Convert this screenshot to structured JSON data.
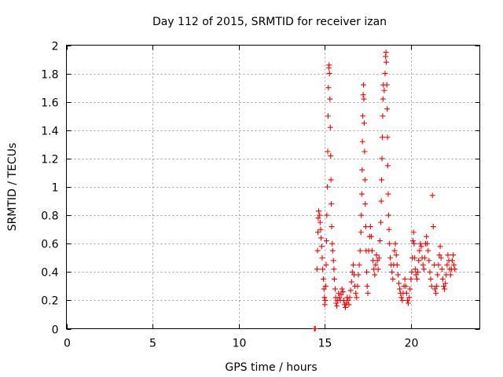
{
  "chart_data": {
    "type": "scatter",
    "title": "Day 112 of 2015, SRMTID for receiver izan",
    "xlabel": "GPS time / hours",
    "ylabel": "SRMTID / TECUs",
    "xlim": [
      0,
      24
    ],
    "ylim": [
      0,
      2
    ],
    "xticks": [
      0,
      5,
      10,
      15,
      20
    ],
    "yticks": [
      0,
      0.2,
      0.4,
      0.6,
      0.8,
      1,
      1.2,
      1.4,
      1.6,
      1.8,
      2
    ],
    "xtick_labels": [
      "0",
      "5",
      "10",
      "15",
      "20"
    ],
    "ytick_labels": [
      "0",
      "0.2",
      "0.4",
      "0.6",
      "0.8",
      "1",
      "1.2",
      "1.4",
      "1.6",
      "1.8",
      "2"
    ],
    "grid": true,
    "marker": "plus",
    "color": "#ff0000",
    "series": [
      {
        "name": "izan",
        "points": [
          [
            14.4,
            0.0
          ],
          [
            14.45,
            0.0
          ],
          [
            14.55,
            0.42
          ],
          [
            14.58,
            0.55
          ],
          [
            14.6,
            0.68
          ],
          [
            14.62,
            0.78
          ],
          [
            14.65,
            0.83
          ],
          [
            14.7,
            0.8
          ],
          [
            14.73,
            0.75
          ],
          [
            14.76,
            0.7
          ],
          [
            14.78,
            0.64
          ],
          [
            14.82,
            0.58
          ],
          [
            14.85,
            0.5
          ],
          [
            14.88,
            0.42
          ],
          [
            14.92,
            0.35
          ],
          [
            14.95,
            0.28
          ],
          [
            14.98,
            0.22
          ],
          [
            15.0,
            0.17
          ],
          [
            15.03,
            0.2
          ],
          [
            15.05,
            0.3
          ],
          [
            15.08,
            0.45
          ],
          [
            15.1,
            0.62
          ],
          [
            15.12,
            0.8
          ],
          [
            15.15,
            1.0
          ],
          [
            15.17,
            1.25
          ],
          [
            15.19,
            1.5
          ],
          [
            15.21,
            1.7
          ],
          [
            15.23,
            1.84
          ],
          [
            15.25,
            1.86
          ],
          [
            15.27,
            1.8
          ],
          [
            15.3,
            1.62
          ],
          [
            15.32,
            1.42
          ],
          [
            15.34,
            1.22
          ],
          [
            15.36,
            1.05
          ],
          [
            15.38,
            0.88
          ],
          [
            15.4,
            0.72
          ],
          [
            15.43,
            0.6
          ],
          [
            15.46,
            0.55
          ],
          [
            15.5,
            0.48
          ],
          [
            15.53,
            0.42
          ],
          [
            15.56,
            0.35
          ],
          [
            15.6,
            0.28
          ],
          [
            15.63,
            0.22
          ],
          [
            15.66,
            0.18
          ],
          [
            15.7,
            0.16
          ],
          [
            15.75,
            0.2
          ],
          [
            15.8,
            0.25
          ],
          [
            15.85,
            0.22
          ],
          [
            15.9,
            0.2
          ],
          [
            15.95,
            0.24
          ],
          [
            16.0,
            0.28
          ],
          [
            16.05,
            0.26
          ],
          [
            16.1,
            0.2
          ],
          [
            16.15,
            0.17
          ],
          [
            16.2,
            0.15
          ],
          [
            16.25,
            0.18
          ],
          [
            16.3,
            0.22
          ],
          [
            16.35,
            0.2
          ],
          [
            16.4,
            0.17
          ],
          [
            16.45,
            0.22
          ],
          [
            16.5,
            0.27
          ],
          [
            16.55,
            0.33
          ],
          [
            16.6,
            0.4
          ],
          [
            16.65,
            0.45
          ],
          [
            16.7,
            0.38
          ],
          [
            16.75,
            0.3
          ],
          [
            16.8,
            0.25
          ],
          [
            16.85,
            0.22
          ],
          [
            16.9,
            0.3
          ],
          [
            16.95,
            0.38
          ],
          [
            17.0,
            0.45
          ],
          [
            17.05,
            0.55
          ],
          [
            17.1,
            0.68
          ],
          [
            17.12,
            0.8
          ],
          [
            17.15,
            0.95
          ],
          [
            17.17,
            1.12
          ],
          [
            17.19,
            1.32
          ],
          [
            17.21,
            1.5
          ],
          [
            17.23,
            1.65
          ],
          [
            17.25,
            1.72
          ],
          [
            17.27,
            1.62
          ],
          [
            17.29,
            1.45
          ],
          [
            17.31,
            1.25
          ],
          [
            17.33,
            1.05
          ],
          [
            17.35,
            0.88
          ],
          [
            17.38,
            0.72
          ],
          [
            17.4,
            0.55
          ],
          [
            17.43,
            0.4
          ],
          [
            17.46,
            0.3
          ],
          [
            17.5,
            0.25
          ],
          [
            17.55,
            0.55
          ],
          [
            17.6,
            0.65
          ],
          [
            17.65,
            0.72
          ],
          [
            17.7,
            0.65
          ],
          [
            17.75,
            0.55
          ],
          [
            17.8,
            0.48
          ],
          [
            17.85,
            0.42
          ],
          [
            17.9,
            0.38
          ],
          [
            17.95,
            0.45
          ],
          [
            18.0,
            0.52
          ],
          [
            18.05,
            0.48
          ],
          [
            18.1,
            0.42
          ],
          [
            18.15,
            0.5
          ],
          [
            18.2,
            0.62
          ],
          [
            18.25,
            0.75
          ],
          [
            18.28,
            0.9
          ],
          [
            18.3,
            1.05
          ],
          [
            18.32,
            1.2
          ],
          [
            18.34,
            1.35
          ],
          [
            18.36,
            1.5
          ],
          [
            18.38,
            1.62
          ],
          [
            18.4,
            1.72
          ],
          [
            18.45,
            1.68
          ],
          [
            18.5,
            1.8
          ],
          [
            18.53,
            1.92
          ],
          [
            18.55,
            1.95
          ],
          [
            18.57,
            1.88
          ],
          [
            18.6,
            1.72
          ],
          [
            18.62,
            1.55
          ],
          [
            18.64,
            1.35
          ],
          [
            18.66,
            1.15
          ],
          [
            18.68,
            0.95
          ],
          [
            18.7,
            0.8
          ],
          [
            18.73,
            0.7
          ],
          [
            18.76,
            0.6
          ],
          [
            18.8,
            0.5
          ],
          [
            18.85,
            0.45
          ],
          [
            18.9,
            0.4
          ],
          [
            18.95,
            0.35
          ],
          [
            19.0,
            0.45
          ],
          [
            19.05,
            0.55
          ],
          [
            19.1,
            0.6
          ],
          [
            19.15,
            0.52
          ],
          [
            19.2,
            0.45
          ],
          [
            19.25,
            0.38
          ],
          [
            19.3,
            0.32
          ],
          [
            19.35,
            0.28
          ],
          [
            19.4,
            0.25
          ],
          [
            19.45,
            0.22
          ],
          [
            19.5,
            0.2
          ],
          [
            19.55,
            0.25
          ],
          [
            19.6,
            0.3
          ],
          [
            19.65,
            0.35
          ],
          [
            19.7,
            0.3
          ],
          [
            19.75,
            0.25
          ],
          [
            19.8,
            0.2
          ],
          [
            19.85,
            0.18
          ],
          [
            19.9,
            0.22
          ],
          [
            19.95,
            0.28
          ],
          [
            20.0,
            0.35
          ],
          [
            20.05,
            0.4
          ],
          [
            20.08,
            0.5
          ],
          [
            20.12,
            0.62
          ],
          [
            20.15,
            0.68
          ],
          [
            20.18,
            0.6
          ],
          [
            20.22,
            0.5
          ],
          [
            20.25,
            0.42
          ],
          [
            20.3,
            0.38
          ],
          [
            20.35,
            0.35
          ],
          [
            20.4,
            0.4
          ],
          [
            20.45,
            0.48
          ],
          [
            20.5,
            0.55
          ],
          [
            20.55,
            0.6
          ],
          [
            20.6,
            0.58
          ],
          [
            20.65,
            0.5
          ],
          [
            20.7,
            0.45
          ],
          [
            20.75,
            0.42
          ],
          [
            20.8,
            0.5
          ],
          [
            20.85,
            0.6
          ],
          [
            20.9,
            0.65
          ],
          [
            20.95,
            0.6
          ],
          [
            21.0,
            0.55
          ],
          [
            21.05,
            0.48
          ],
          [
            21.1,
            0.4
          ],
          [
            21.15,
            0.35
          ],
          [
            21.2,
            0.3
          ],
          [
            21.25,
            0.94
          ],
          [
            21.3,
            0.72
          ],
          [
            21.35,
            0.45
          ],
          [
            21.4,
            0.28
          ],
          [
            21.45,
            0.25
          ],
          [
            21.5,
            0.3
          ],
          [
            21.55,
            0.38
          ],
          [
            21.6,
            0.45
          ],
          [
            21.65,
            0.52
          ],
          [
            21.7,
            0.58
          ],
          [
            21.75,
            0.5
          ],
          [
            21.8,
            0.42
          ],
          [
            21.85,
            0.35
          ],
          [
            21.9,
            0.3
          ],
          [
            21.95,
            0.28
          ],
          [
            22.0,
            0.32
          ],
          [
            22.05,
            0.38
          ],
          [
            22.1,
            0.45
          ],
          [
            22.15,
            0.52
          ],
          [
            22.2,
            0.48
          ],
          [
            22.25,
            0.42
          ],
          [
            22.3,
            0.38
          ],
          [
            22.35,
            0.42
          ],
          [
            22.4,
            0.48
          ],
          [
            22.45,
            0.52
          ],
          [
            22.5,
            0.45
          ],
          [
            22.55,
            0.42
          ]
        ]
      }
    ]
  }
}
